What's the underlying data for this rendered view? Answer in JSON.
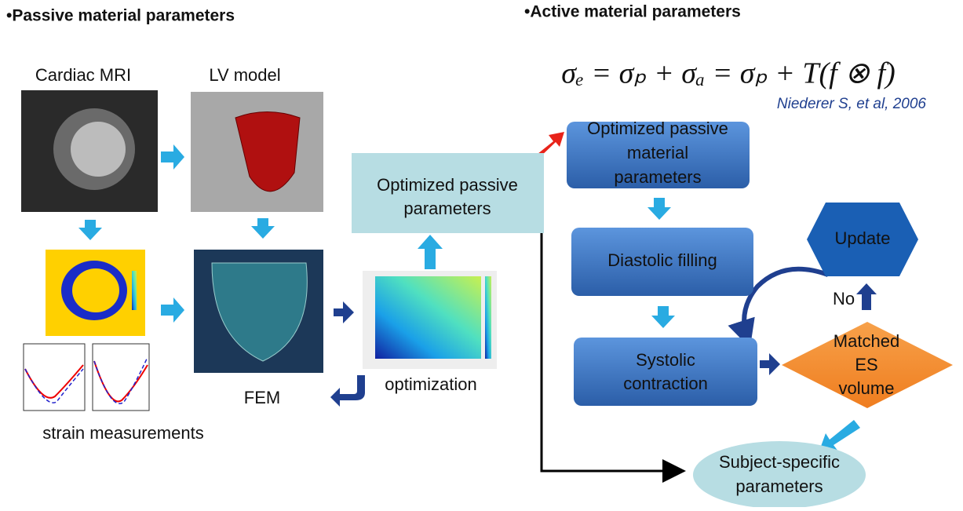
{
  "passive_title": "•Passive material parameters",
  "active_title": "•Active material parameters",
  "equation": "σₑ = σₚ + σₐ = σₚ + T(f ⊗ f)",
  "citation": "Niederer S, et al, 2006",
  "labels": {
    "cardiac_mri": "Cardiac MRI",
    "lv_model": "LV model",
    "fem": "FEM",
    "strain": "strain measurements",
    "optimization": "optimization",
    "no": "No"
  },
  "nodes": [
    {
      "id": "opt-passive",
      "lines": [
        "Optimized passive",
        "parameters"
      ]
    },
    {
      "id": "opt-passive-material",
      "lines": [
        "Optimized passive",
        "material",
        "parameters"
      ]
    },
    {
      "id": "diastolic",
      "lines": [
        "Diastolic filling"
      ]
    },
    {
      "id": "systolic",
      "lines": [
        "Systolic",
        "contraction"
      ]
    },
    {
      "id": "update",
      "lines": [
        "Update"
      ]
    },
    {
      "id": "matched",
      "lines": [
        "Matched",
        "ES",
        "volume"
      ]
    },
    {
      "id": "subject",
      "lines": [
        "Subject-specific",
        "parameters"
      ]
    }
  ]
}
